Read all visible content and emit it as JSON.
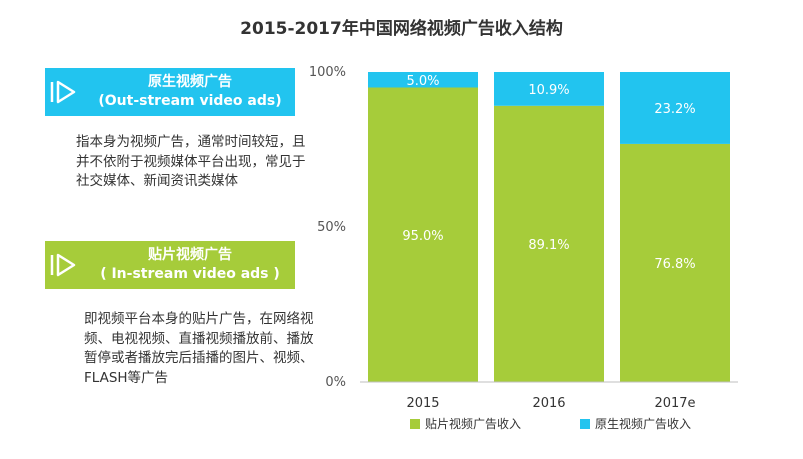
{
  "title": "2015-2017年中国网络视频广告收入结构",
  "outstream": {
    "label": "原生视频广告",
    "label_en": "(Out-stream video ads)",
    "description": "指本身为视频广告，通常时间较短，且并不依附于视频媒体平台出现，常见于社交媒体、新闻资讯类媒体",
    "icon": "play-outline-icon"
  },
  "instream": {
    "label": "贴片视频广告",
    "label_en": "( In-stream video ads )",
    "description": "即视频平台本身的贴片广告，在网络视频、电视视频、直播视频播放前、播放暂停或者播放完后插播的图片、视频、FLASH等广告",
    "icon": "play-outline-icon"
  },
  "colors": {
    "instream": "#a6cc3a",
    "outstream": "#22c4ef"
  },
  "chart_data": {
    "type": "bar",
    "stacked": true,
    "categories": [
      "2015",
      "2016",
      "2017e"
    ],
    "series": [
      {
        "name": "贴片视频广告收入",
        "values": [
          95.0,
          89.1,
          76.8
        ],
        "labels": [
          "95.0%",
          "89.1%",
          "76.8%"
        ]
      },
      {
        "name": "原生视频广告收入",
        "values": [
          5.0,
          10.9,
          23.2
        ],
        "labels": [
          "5.0%",
          "10.9%",
          "23.2%"
        ]
      }
    ],
    "ylim": [
      0,
      100
    ],
    "yticks": [
      0,
      50,
      100
    ],
    "ytick_labels": [
      "0%",
      "50%",
      "100%"
    ],
    "legend_position": "bottom"
  }
}
